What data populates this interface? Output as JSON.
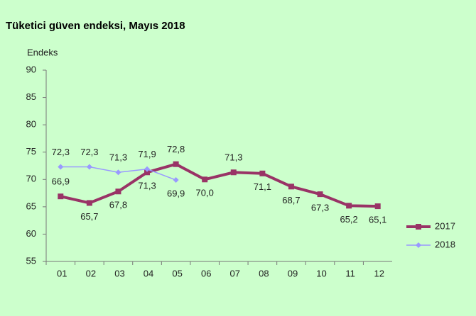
{
  "chart_data": {
    "type": "line",
    "title": "Tüketici güven endeksi, Mayıs 2018",
    "y_label": "Endeks",
    "categories": [
      "01",
      "02",
      "03",
      "04",
      "05",
      "06",
      "07",
      "08",
      "09",
      "10",
      "11",
      "12"
    ],
    "series": [
      {
        "name": "2017",
        "color": "#993366",
        "marker": "square",
        "values": [
          66.9,
          65.7,
          67.8,
          71.3,
          72.8,
          70.0,
          71.3,
          71.1,
          68.7,
          67.3,
          65.2,
          65.1
        ],
        "value_labels": [
          "66,9",
          "65,7",
          "67,8",
          "71,3",
          "72,8",
          "70,0",
          "71,3",
          "71,1",
          "68,7",
          "67,3",
          "65,2",
          "65,1"
        ]
      },
      {
        "name": "2018",
        "color": "#9999ff",
        "marker": "diamond",
        "values": [
          72.3,
          72.3,
          71.3,
          71.9,
          69.9,
          null,
          null,
          null,
          null,
          null,
          null,
          null
        ],
        "value_labels": [
          "72,3",
          "72,3",
          "71,3",
          "71,9",
          "69,9",
          null,
          null,
          null,
          null,
          null,
          null,
          null
        ]
      }
    ],
    "ylim": [
      55,
      90
    ],
    "yticks": [
      55,
      60,
      65,
      70,
      75,
      80,
      85,
      90
    ],
    "grid": false,
    "legend": "right"
  }
}
